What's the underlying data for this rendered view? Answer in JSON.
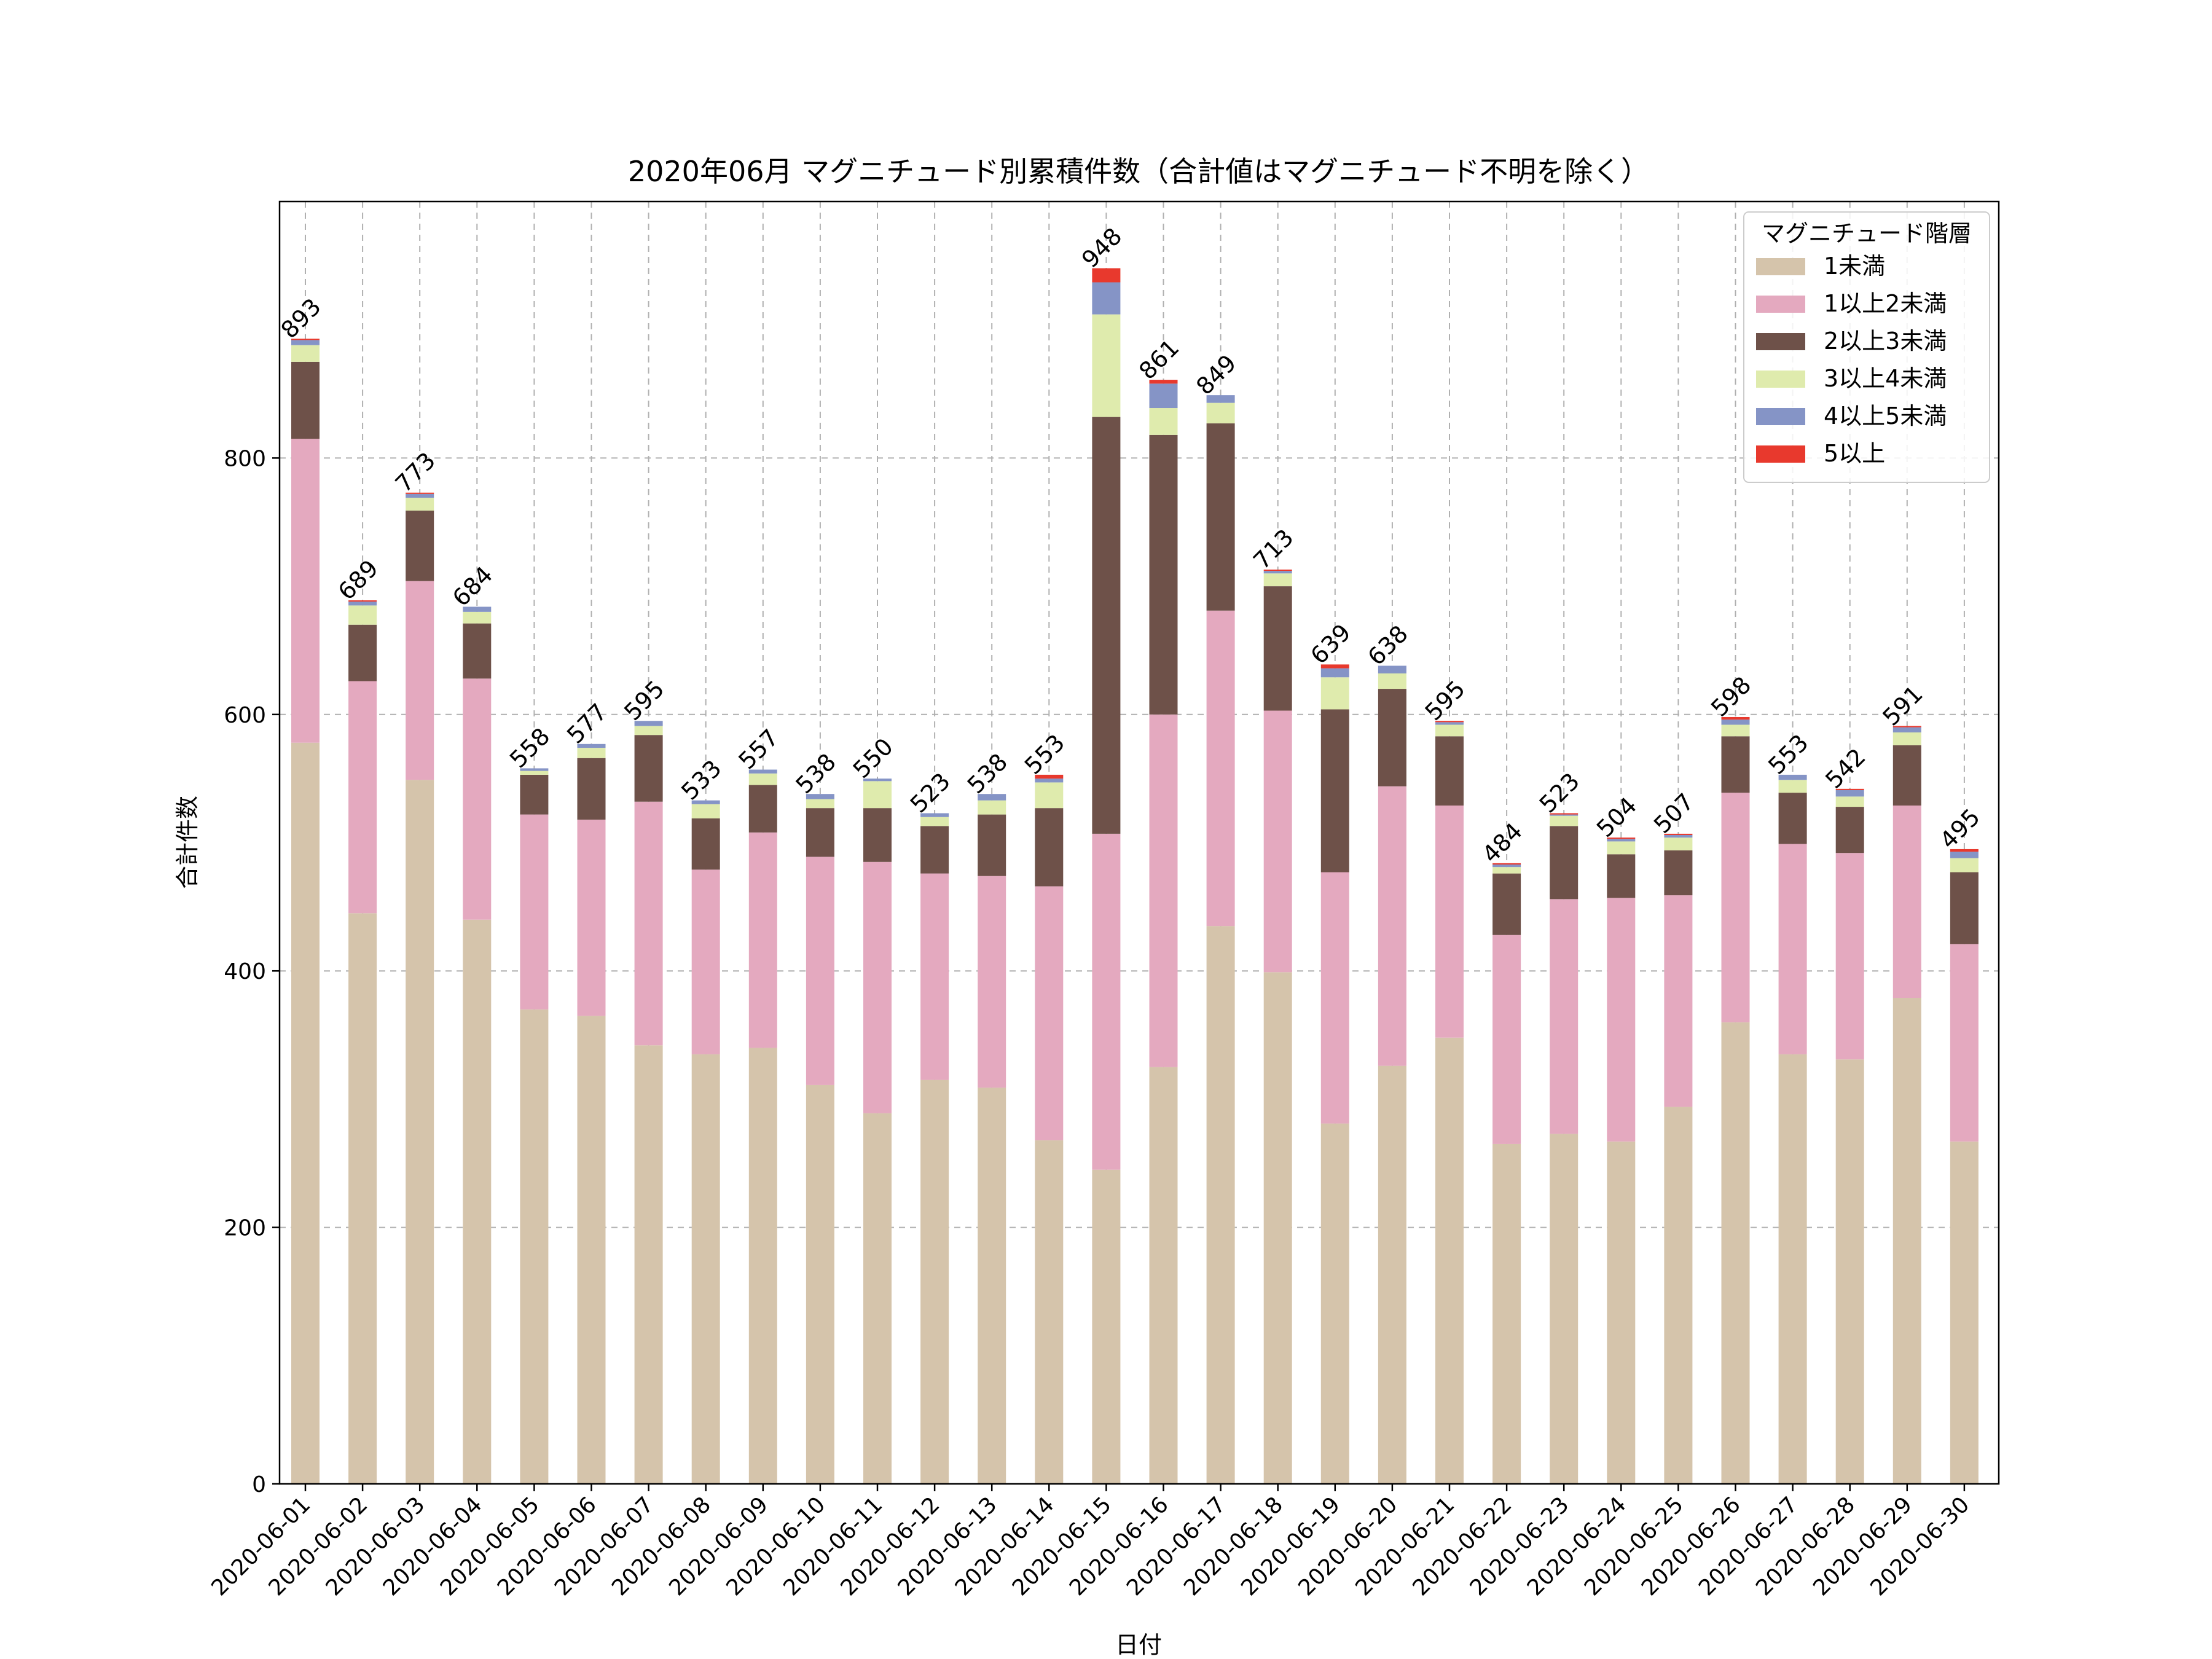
{
  "chart_data": {
    "type": "bar",
    "stacked": true,
    "title": "2020年06月 マグニチュード別累積件数（合計値はマグニチュード不明を除く）",
    "xlabel": "日付",
    "ylabel": "合計件数",
    "ylim": [
      0,
      1000
    ],
    "yticks": [
      "0",
      "200",
      "400",
      "600",
      "800"
    ],
    "grid": true,
    "legend": {
      "title": "マグニチュード階層",
      "position": "top-right"
    },
    "categories": [
      "2020-06-01",
      "2020-06-02",
      "2020-06-03",
      "2020-06-04",
      "2020-06-05",
      "2020-06-06",
      "2020-06-07",
      "2020-06-08",
      "2020-06-09",
      "2020-06-10",
      "2020-06-11",
      "2020-06-12",
      "2020-06-13",
      "2020-06-14",
      "2020-06-15",
      "2020-06-16",
      "2020-06-17",
      "2020-06-18",
      "2020-06-19",
      "2020-06-20",
      "2020-06-21",
      "2020-06-22",
      "2020-06-23",
      "2020-06-24",
      "2020-06-25",
      "2020-06-26",
      "2020-06-27",
      "2020-06-28",
      "2020-06-29",
      "2020-06-30"
    ],
    "totals": [
      "893",
      "689",
      "773",
      "684",
      "558",
      "577",
      "595",
      "533",
      "557",
      "538",
      "550",
      "523",
      "538",
      "553",
      "948",
      "861",
      "849",
      "713",
      "639",
      "638",
      "595",
      "484",
      "523",
      "504",
      "507",
      "598",
      "553",
      "542",
      "591",
      "495"
    ],
    "series": [
      {
        "name": "1未満",
        "color": "#d5c4ab",
        "values": [
          578,
          445,
          549,
          440,
          370,
          365,
          342,
          335,
          340,
          311,
          289,
          315,
          309,
          268,
          245,
          325,
          435,
          399,
          281,
          326,
          348,
          265,
          273,
          267,
          294,
          360,
          335,
          331,
          379,
          267
        ]
      },
      {
        "name": "1以上2未満",
        "color": "#e4a9bf",
        "values": [
          237,
          181,
          155,
          188,
          152,
          153,
          190,
          144,
          168,
          178,
          196,
          161,
          165,
          198,
          262,
          275,
          246,
          204,
          196,
          218,
          181,
          163,
          183,
          190,
          165,
          179,
          164,
          161,
          150,
          154
        ]
      },
      {
        "name": "2以上3未満",
        "color": "#6e5149",
        "values": [
          60,
          44,
          55,
          43,
          31,
          48,
          52,
          40,
          37,
          38,
          42,
          37,
          48,
          61,
          325,
          218,
          146,
          97,
          127,
          76,
          54,
          48,
          57,
          34,
          35,
          44,
          40,
          36,
          47,
          56
        ]
      },
      {
        "name": "3以上4未満",
        "color": "#dfebad",
        "values": [
          13,
          15,
          10,
          9,
          3,
          8,
          7,
          11,
          9,
          7,
          21,
          7,
          11,
          20,
          80,
          21,
          16,
          10,
          25,
          12,
          9,
          5,
          8,
          10,
          10,
          9,
          10,
          8,
          10,
          11
        ]
      },
      {
        "name": "4以上5未満",
        "color": "#8594c6",
        "values": [
          4,
          3,
          3,
          4,
          2,
          3,
          4,
          3,
          3,
          4,
          2,
          3,
          5,
          3,
          25,
          19,
          6,
          2,
          7,
          6,
          2,
          2,
          1,
          2,
          2,
          4,
          4,
          5,
          4,
          5
        ]
      },
      {
        "name": "5以上",
        "color": "#e8392d",
        "values": [
          1,
          1,
          1,
          0,
          0,
          0,
          0,
          0,
          0,
          0,
          0,
          0,
          0,
          3,
          11,
          3,
          0,
          1,
          3,
          0,
          1,
          1,
          1,
          1,
          1,
          2,
          0,
          1,
          1,
          2
        ]
      }
    ]
  }
}
